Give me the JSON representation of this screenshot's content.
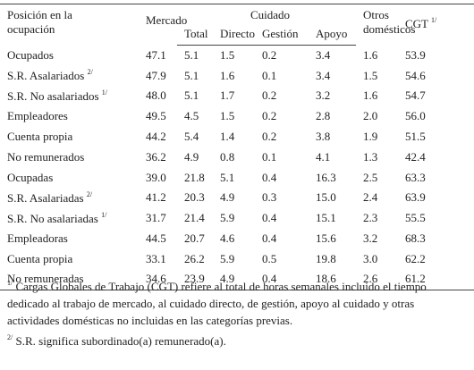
{
  "table": {
    "headers": {
      "label": "Posición en la ocupación",
      "mercado": "Mercado",
      "cuidado": "Cuidado",
      "sub": [
        "Total",
        "Directo",
        "Gestión",
        "Apoyo"
      ],
      "otros": "Otros domésticos",
      "cgt": "CGT",
      "cgt_note": "1/"
    },
    "rows": [
      {
        "label": "Ocupados",
        "note": null,
        "cells": [
          "47.1",
          "5.1",
          "1.5",
          "0.2",
          "3.4",
          "1.6",
          "53.9"
        ]
      },
      {
        "label": "S.R. Asalariados",
        "note": "2/",
        "cells": [
          "47.9",
          "5.1",
          "1.6",
          "0.1",
          "3.4",
          "1.5",
          "54.6"
        ]
      },
      {
        "label": "S.R. No asalariados",
        "note": "1/",
        "cells": [
          "48.0",
          "5.1",
          "1.7",
          "0.2",
          "3.2",
          "1.6",
          "54.7"
        ]
      },
      {
        "label": "Empleadores",
        "note": null,
        "cells": [
          "49.5",
          "4.5",
          "1.5",
          "0.2",
          "2.8",
          "2.0",
          "56.0"
        ]
      },
      {
        "label": "Cuenta propia",
        "note": null,
        "cells": [
          "44.2",
          "5.4",
          "1.4",
          "0.2",
          "3.8",
          "1.9",
          "51.5"
        ]
      },
      {
        "label": "No remunerados",
        "note": null,
        "cells": [
          "36.2",
          "4.9",
          "0.8",
          "0.1",
          "4.1",
          "1.3",
          "42.4"
        ]
      },
      {
        "label": "Ocupadas",
        "note": null,
        "cells": [
          "39.0",
          "21.8",
          "5.1",
          "0.4",
          "16.3",
          "2.5",
          "63.3"
        ]
      },
      {
        "label": "S.R. Asalariadas",
        "note": "2/",
        "cells": [
          "41.2",
          "20.3",
          "4.9",
          "0.3",
          "15.0",
          "2.4",
          "63.9"
        ]
      },
      {
        "label": "S.R. No asalariadas",
        "note": "1/",
        "cells": [
          "31.7",
          "21.4",
          "5.9",
          "0.4",
          "15.1",
          "2.3",
          "55.5"
        ]
      },
      {
        "label": "Empleadoras",
        "note": null,
        "cells": [
          "44.5",
          "20.7",
          "4.6",
          "0.4",
          "15.6",
          "3.2",
          "68.3"
        ]
      },
      {
        "label": "Cuenta propia",
        "note": null,
        "cells": [
          "33.1",
          "26.2",
          "5.9",
          "0.5",
          "19.8",
          "3.0",
          "62.2"
        ]
      },
      {
        "label": "No remuneradas",
        "note": null,
        "cells": [
          "34.6",
          "23.9",
          "4.9",
          "0.4",
          "18.6",
          "2.6",
          "61.2"
        ]
      }
    ]
  },
  "footnotes": [
    {
      "mark": "1/",
      "text": "Cargas Globales de Trabajo (CGT) refiere al total de horas semanales incluido el tiempo dedicado al trabajo de mercado, al cuidado directo, de gestión, apoyo al cuidado y otras actividades domésticas no incluidas en las categorías previas."
    },
    {
      "mark": "2/",
      "text": "S.R. significa subordinado(a) remunerado(a)."
    }
  ]
}
